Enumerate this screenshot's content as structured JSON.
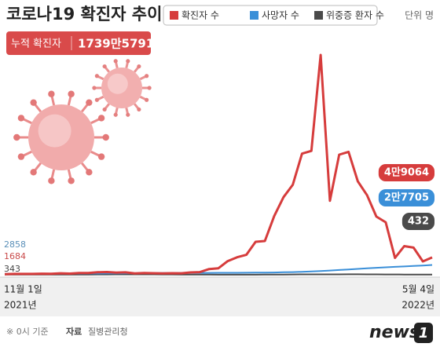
{
  "chart_data": {
    "type": "line",
    "title": "코로나19 확진자 추이",
    "unit": "단위 명",
    "cumulative_label": "누적 확진자",
    "cumulative_value": "1739만5791",
    "categories": [
      "11월 1일",
      null,
      null,
      null,
      null,
      null,
      null,
      null,
      null,
      null,
      null,
      null,
      null,
      null,
      null,
      null,
      null,
      null,
      null,
      null,
      null,
      null,
      null,
      null,
      null,
      null,
      null,
      null,
      null,
      null,
      null,
      null,
      null,
      null,
      null,
      null,
      null,
      null,
      null,
      null,
      null,
      null,
      null,
      null,
      null,
      null,
      "5월 4일"
    ],
    "x_start_year": "2021년",
    "x_end_year": "2022년",
    "series": [
      {
        "name": "확진자 수",
        "color": "#d63c3c",
        "values": [
          1684,
          2344,
          2425,
          2368,
          3187,
          2827,
          4115,
          3309,
          4944,
          4954,
          7022,
          7850,
          6236,
          6919,
          3865,
          5037,
          4443,
          4068,
          4385,
          4194,
          6603,
          7513,
          16096,
          18342,
          38689,
          49567,
          56431,
          93135,
          95362,
          165890,
          219241,
          254327,
          342446,
          350190,
          621328,
          209169,
          339514,
          347554,
          264171,
          224820,
          164481,
          148443,
          47743,
          81058,
          76787,
          37771,
          49064
        ],
        "value_labels": [
          null,
          null,
          null,
          null,
          null,
          null,
          null,
          null,
          null,
          null,
          null,
          null,
          null,
          null,
          null,
          null,
          null,
          null,
          null,
          null,
          null,
          null,
          null,
          null,
          null,
          null,
          null,
          null,
          null,
          null,
          null,
          null,
          null,
          null,
          null,
          null,
          null,
          null,
          null,
          null,
          null,
          null,
          null,
          null,
          null,
          null,
          "4만9064"
        ]
      },
      {
        "name": "사망자 수",
        "color": "#3a8fd8",
        "values": [
          2858,
          2891,
          2935,
          2990,
          3050,
          3110,
          3187,
          3264,
          3364,
          3492,
          3658,
          3830,
          4020,
          4210,
          4380,
          4550,
          4720,
          4880,
          5010,
          5120,
          5220,
          5300,
          5380,
          5450,
          5530,
          5620,
          5780,
          5990,
          6240,
          6520,
          7000,
          7600,
          8400,
          9400,
          10600,
          12000,
          13500,
          15000,
          16600,
          18200,
          19700,
          21100,
          22400,
          23600,
          24800,
          26200,
          27705
        ],
        "value_labels": [
          null,
          null,
          null,
          null,
          null,
          null,
          null,
          null,
          null,
          null,
          null,
          null,
          null,
          null,
          null,
          null,
          null,
          null,
          null,
          null,
          null,
          null,
          null,
          null,
          null,
          null,
          null,
          null,
          null,
          null,
          null,
          null,
          null,
          null,
          null,
          null,
          null,
          null,
          null,
          null,
          null,
          null,
          null,
          null,
          null,
          null,
          "2만7705"
        ]
      },
      {
        "name": "위중증 환자 수",
        "color": "#4a4a4a",
        "values": [
          343,
          401,
          475,
          506,
          522,
          508,
          586,
          661,
          723,
          774,
          856,
          989,
          1025,
          1084,
          1102,
          1151,
          1015,
          882,
          839,
          700,
          532,
          431,
          385,
          272,
          278,
          275,
          285,
          313,
          480,
          655,
          762,
          896,
          1113,
          1158,
          1049,
          1104,
          1085,
          1273,
          1315,
          1099,
          1017,
          929,
          882,
          668,
          613,
          459,
          432
        ]
      }
    ],
    "note": "※ 0시 기준",
    "source_label": "자료",
    "source": "질병관리청",
    "logo_text": "news",
    "logo_number": "1"
  }
}
